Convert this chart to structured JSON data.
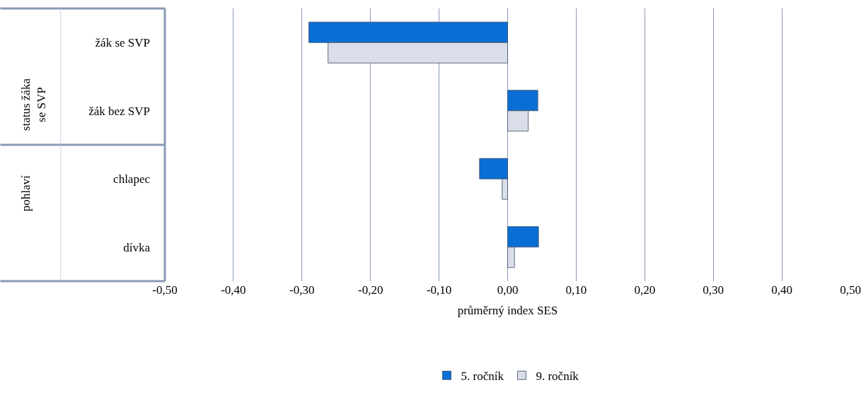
{
  "chart_data": {
    "type": "bar",
    "orientation": "horizontal",
    "categories": [
      "žák se SVP",
      "žák bez SVP",
      "chlapec",
      "dívka"
    ],
    "series": [
      {
        "name": "5. ročník",
        "color": "#0a6fd4",
        "values": [
          -0.29,
          0.044,
          -0.041,
          0.045
        ]
      },
      {
        "name": "9. ročník",
        "color": "#d9dee8",
        "values": [
          -0.262,
          0.03,
          -0.008,
          0.01
        ]
      }
    ],
    "xlim": [
      -0.5,
      0.5
    ],
    "xticks": [
      {
        "value": -0.5,
        "label": "-0,50"
      },
      {
        "value": -0.4,
        "label": "-0,40"
      },
      {
        "value": -0.3,
        "label": "-0,30"
      },
      {
        "value": -0.2,
        "label": "-0,20"
      },
      {
        "value": -0.1,
        "label": "-0,10"
      },
      {
        "value": 0,
        "label": "0,00"
      },
      {
        "value": 0.1,
        "label": "0,10"
      },
      {
        "value": 0.2,
        "label": "0,20"
      },
      {
        "value": 0.3,
        "label": "0,30"
      },
      {
        "value": 0.4,
        "label": "0,40"
      },
      {
        "value": 0.5,
        "label": "0,50"
      }
    ],
    "xlabel": "průměrný index SES",
    "grid": "x",
    "legend": "bottom",
    "annotations": [
      "status žáka se SVP",
      "pohlaví"
    ]
  }
}
